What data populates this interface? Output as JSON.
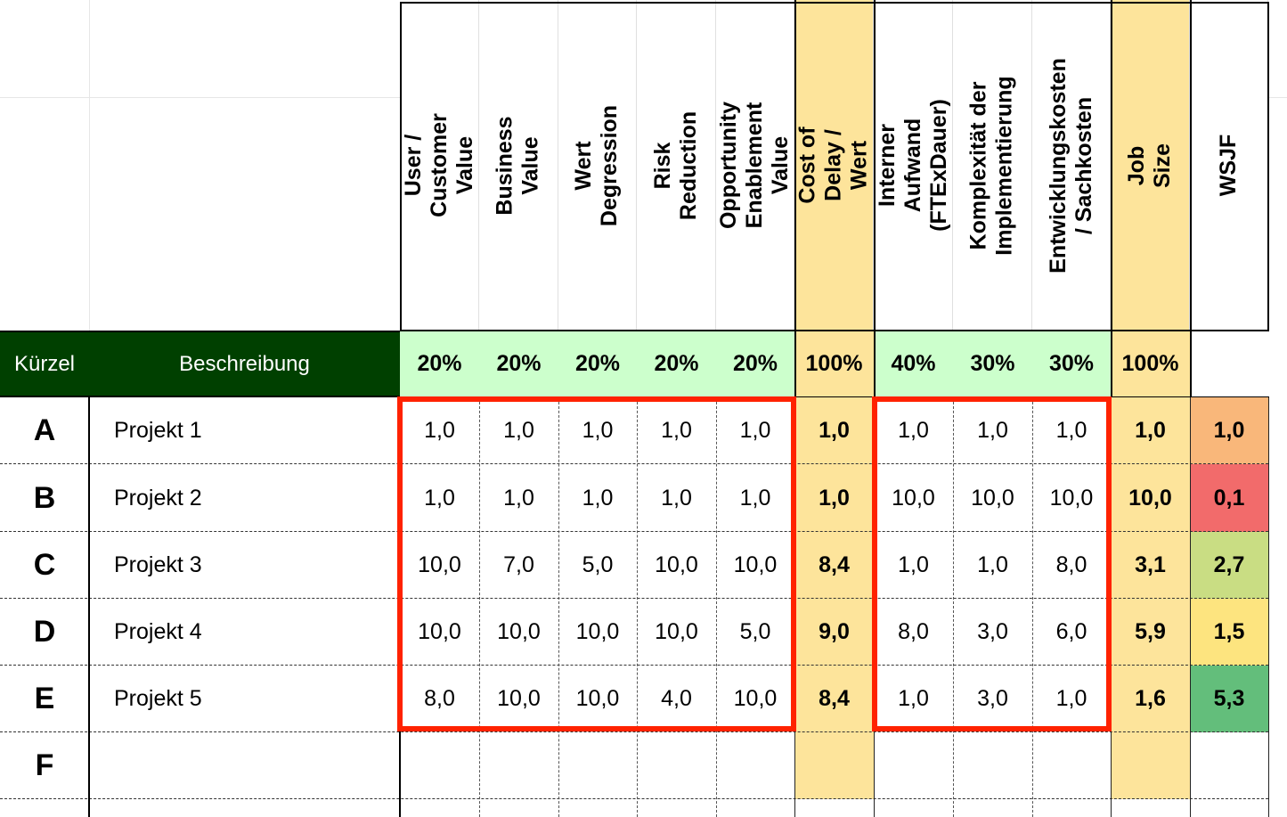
{
  "colors": {
    "header_green": "#004000",
    "weight_green": "#ccffcc",
    "highlight_yellow": "#fde49b",
    "red_box": "#ff2200"
  },
  "headers": {
    "kuerzel": "Kürzel",
    "beschreibung": "Beschreibung",
    "columns": [
      {
        "label": "User / Customer Value",
        "weight": "20%"
      },
      {
        "label": "Business Value",
        "weight": "20%"
      },
      {
        "label": "Wert Degression",
        "weight": "20%"
      },
      {
        "label": "Risk Reduction",
        "weight": "20%"
      },
      {
        "label": "Opportunity Enablement Value",
        "weight": "20%"
      },
      {
        "label": "Cost of Delay / Wert",
        "weight": "100%"
      },
      {
        "label": "Interner Aufwand (FTExDauer)",
        "weight": "40%"
      },
      {
        "label": "Komplexität der Implementierung",
        "weight": "30%"
      },
      {
        "label": "Entwicklungskosten / Sachkosten",
        "weight": "30%"
      },
      {
        "label": "Job Size",
        "weight": "100%"
      },
      {
        "label": "WSJF",
        "weight": ""
      }
    ]
  },
  "rows": [
    {
      "kuerzel": "A",
      "beschreibung": "Projekt 1",
      "values": [
        "1,0",
        "1,0",
        "1,0",
        "1,0",
        "1,0",
        "1,0",
        "1,0",
        "1,0",
        "1,0",
        "1,0",
        "1,0"
      ],
      "wsjf_color": "#f9b77a"
    },
    {
      "kuerzel": "B",
      "beschreibung": "Projekt 2",
      "values": [
        "1,0",
        "1,0",
        "1,0",
        "1,0",
        "1,0",
        "1,0",
        "10,0",
        "10,0",
        "10,0",
        "10,0",
        "0,1"
      ],
      "wsjf_color": "#f26b6b"
    },
    {
      "kuerzel": "C",
      "beschreibung": "Projekt 3",
      "values": [
        "10,0",
        "7,0",
        "5,0",
        "10,0",
        "10,0",
        "8,4",
        "1,0",
        "1,0",
        "8,0",
        "3,1",
        "2,7"
      ],
      "wsjf_color": "#c9dd83"
    },
    {
      "kuerzel": "D",
      "beschreibung": "Projekt 4",
      "values": [
        "10,0",
        "10,0",
        "10,0",
        "10,0",
        "5,0",
        "9,0",
        "8,0",
        "3,0",
        "6,0",
        "5,9",
        "1,5"
      ],
      "wsjf_color": "#fde47f"
    },
    {
      "kuerzel": "E",
      "beschreibung": "Projekt 5",
      "values": [
        "8,0",
        "10,0",
        "10,0",
        "4,0",
        "10,0",
        "8,4",
        "1,0",
        "3,0",
        "1,0",
        "1,6",
        "5,3"
      ],
      "wsjf_color": "#63be7b"
    },
    {
      "kuerzel": "F",
      "beschreibung": "",
      "values": [
        "",
        "",
        "",
        "",
        "",
        "",
        "",
        "",
        "",
        "",
        ""
      ],
      "wsjf_color": "#ffffff"
    }
  ]
}
